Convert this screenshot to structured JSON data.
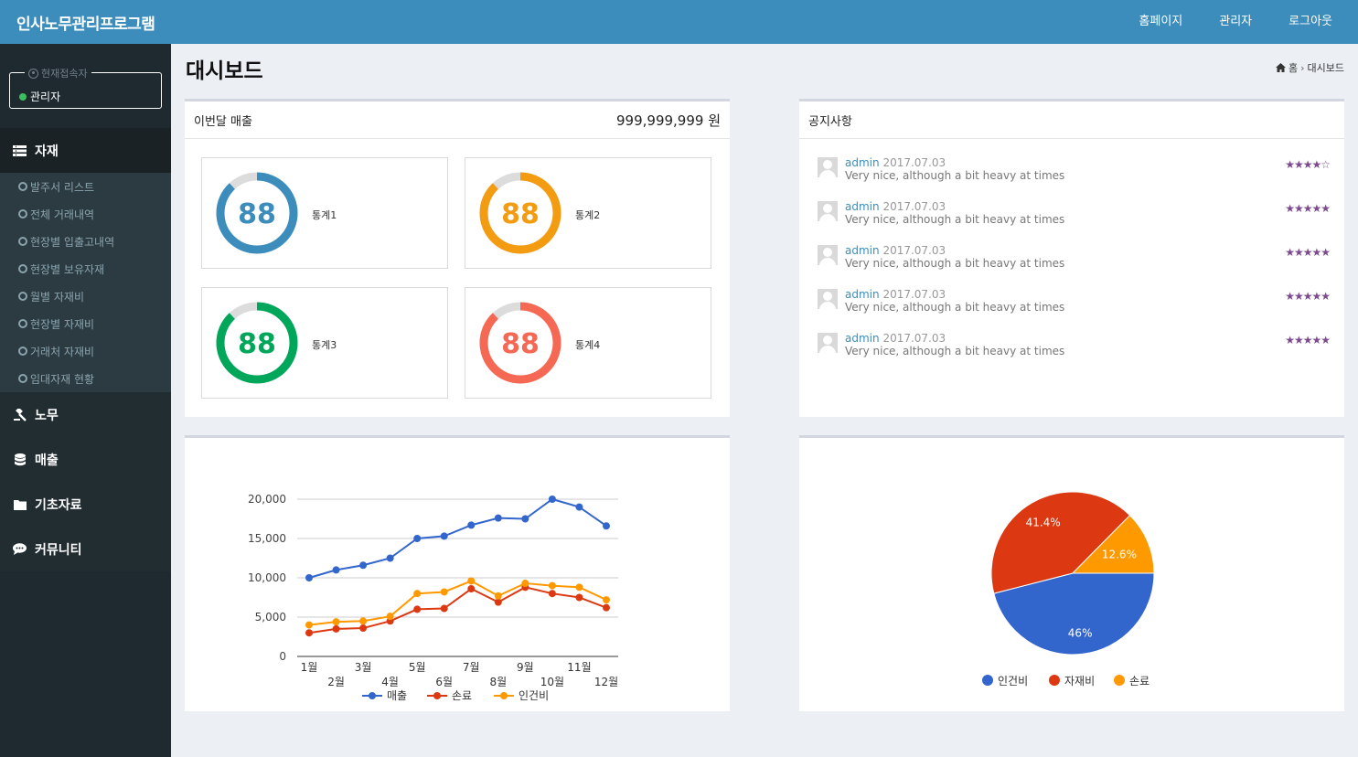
{
  "app": {
    "title": "인사노무관리프로그램"
  },
  "topnav": {
    "home": "홈페이지",
    "admin": "관리자",
    "logout": "로그아웃"
  },
  "user": {
    "legend": "현재접속자",
    "name": "관리자"
  },
  "sidebar": {
    "menus": [
      {
        "label": "자재",
        "icon": "list-icon"
      },
      {
        "label": "노무",
        "icon": "gavel-icon"
      },
      {
        "label": "매출",
        "icon": "database-icon"
      },
      {
        "label": "기초자료",
        "icon": "folder-icon"
      },
      {
        "label": "커뮤니티",
        "icon": "comment-icon"
      }
    ],
    "submenu": [
      "발주서 리스트",
      "전체 거래내역",
      "현장별 입출고내역",
      "현장별 보유자재",
      "월별 자재비",
      "현장별 자재비",
      "거래처 자재비",
      "임대자재 현황"
    ]
  },
  "page": {
    "title": "대시보드",
    "breadcrumb": [
      "홈",
      "대시보드"
    ]
  },
  "sales": {
    "label": "이번달 매출",
    "value": "999,999,999 원"
  },
  "stats": [
    {
      "value": "88",
      "label": "통계1",
      "color": "#3c8dbc",
      "percent": 88
    },
    {
      "value": "88",
      "label": "통계2",
      "color": "#f39c12",
      "percent": 88
    },
    {
      "value": "88",
      "label": "통계3",
      "color": "#00a65a",
      "percent": 88
    },
    {
      "value": "88",
      "label": "통계4",
      "color": "#f56954",
      "percent": 88
    }
  ],
  "notices": {
    "title": "공지사항",
    "items": [
      {
        "author": "admin",
        "date": "2017.07.03",
        "text": "Very nice, although a bit heavy at times",
        "rating": 4
      },
      {
        "author": "admin",
        "date": "2017.07.03",
        "text": "Very nice, although a bit heavy at times",
        "rating": 5
      },
      {
        "author": "admin",
        "date": "2017.07.03",
        "text": "Very nice, although a bit heavy at times",
        "rating": 5
      },
      {
        "author": "admin",
        "date": "2017.07.03",
        "text": "Very nice, although a bit heavy at times",
        "rating": 5
      },
      {
        "author": "admin",
        "date": "2017.07.03",
        "text": "Very nice, although a bit heavy at times",
        "rating": 5
      }
    ]
  },
  "chart_data": [
    {
      "type": "line",
      "categories": [
        "1월",
        "2월",
        "3월",
        "4월",
        "5월",
        "6월",
        "7월",
        "8월",
        "9월",
        "10월",
        "11월",
        "12월"
      ],
      "series": [
        {
          "name": "매출",
          "color": "#3366cc",
          "values": [
            10000,
            11000,
            11600,
            12500,
            15000,
            15300,
            16700,
            17600,
            17500,
            20000,
            19000,
            16600
          ]
        },
        {
          "name": "손료",
          "color": "#dc3912",
          "values": [
            3000,
            3500,
            3600,
            4500,
            6000,
            6100,
            8600,
            6900,
            8800,
            8000,
            7500,
            6200
          ]
        },
        {
          "name": "인건비",
          "color": "#ff9900",
          "values": [
            4000,
            4400,
            4500,
            5100,
            8000,
            8200,
            9600,
            7700,
            9300,
            9000,
            8800,
            7200
          ]
        }
      ],
      "ylim": [
        0,
        20000
      ],
      "yticks": [
        "0",
        "5,000",
        "10,000",
        "15,000",
        "20,000"
      ],
      "grid": true,
      "legend": "bottom"
    },
    {
      "type": "pie",
      "categories": [
        "인건비",
        "자재비",
        "손료"
      ],
      "values": [
        46,
        41.4,
        12.6
      ],
      "labels": [
        "46%",
        "41.4%",
        "12.6%"
      ],
      "colors": [
        "#3366cc",
        "#dc3912",
        "#ff9900"
      ],
      "legend": "bottom"
    }
  ]
}
